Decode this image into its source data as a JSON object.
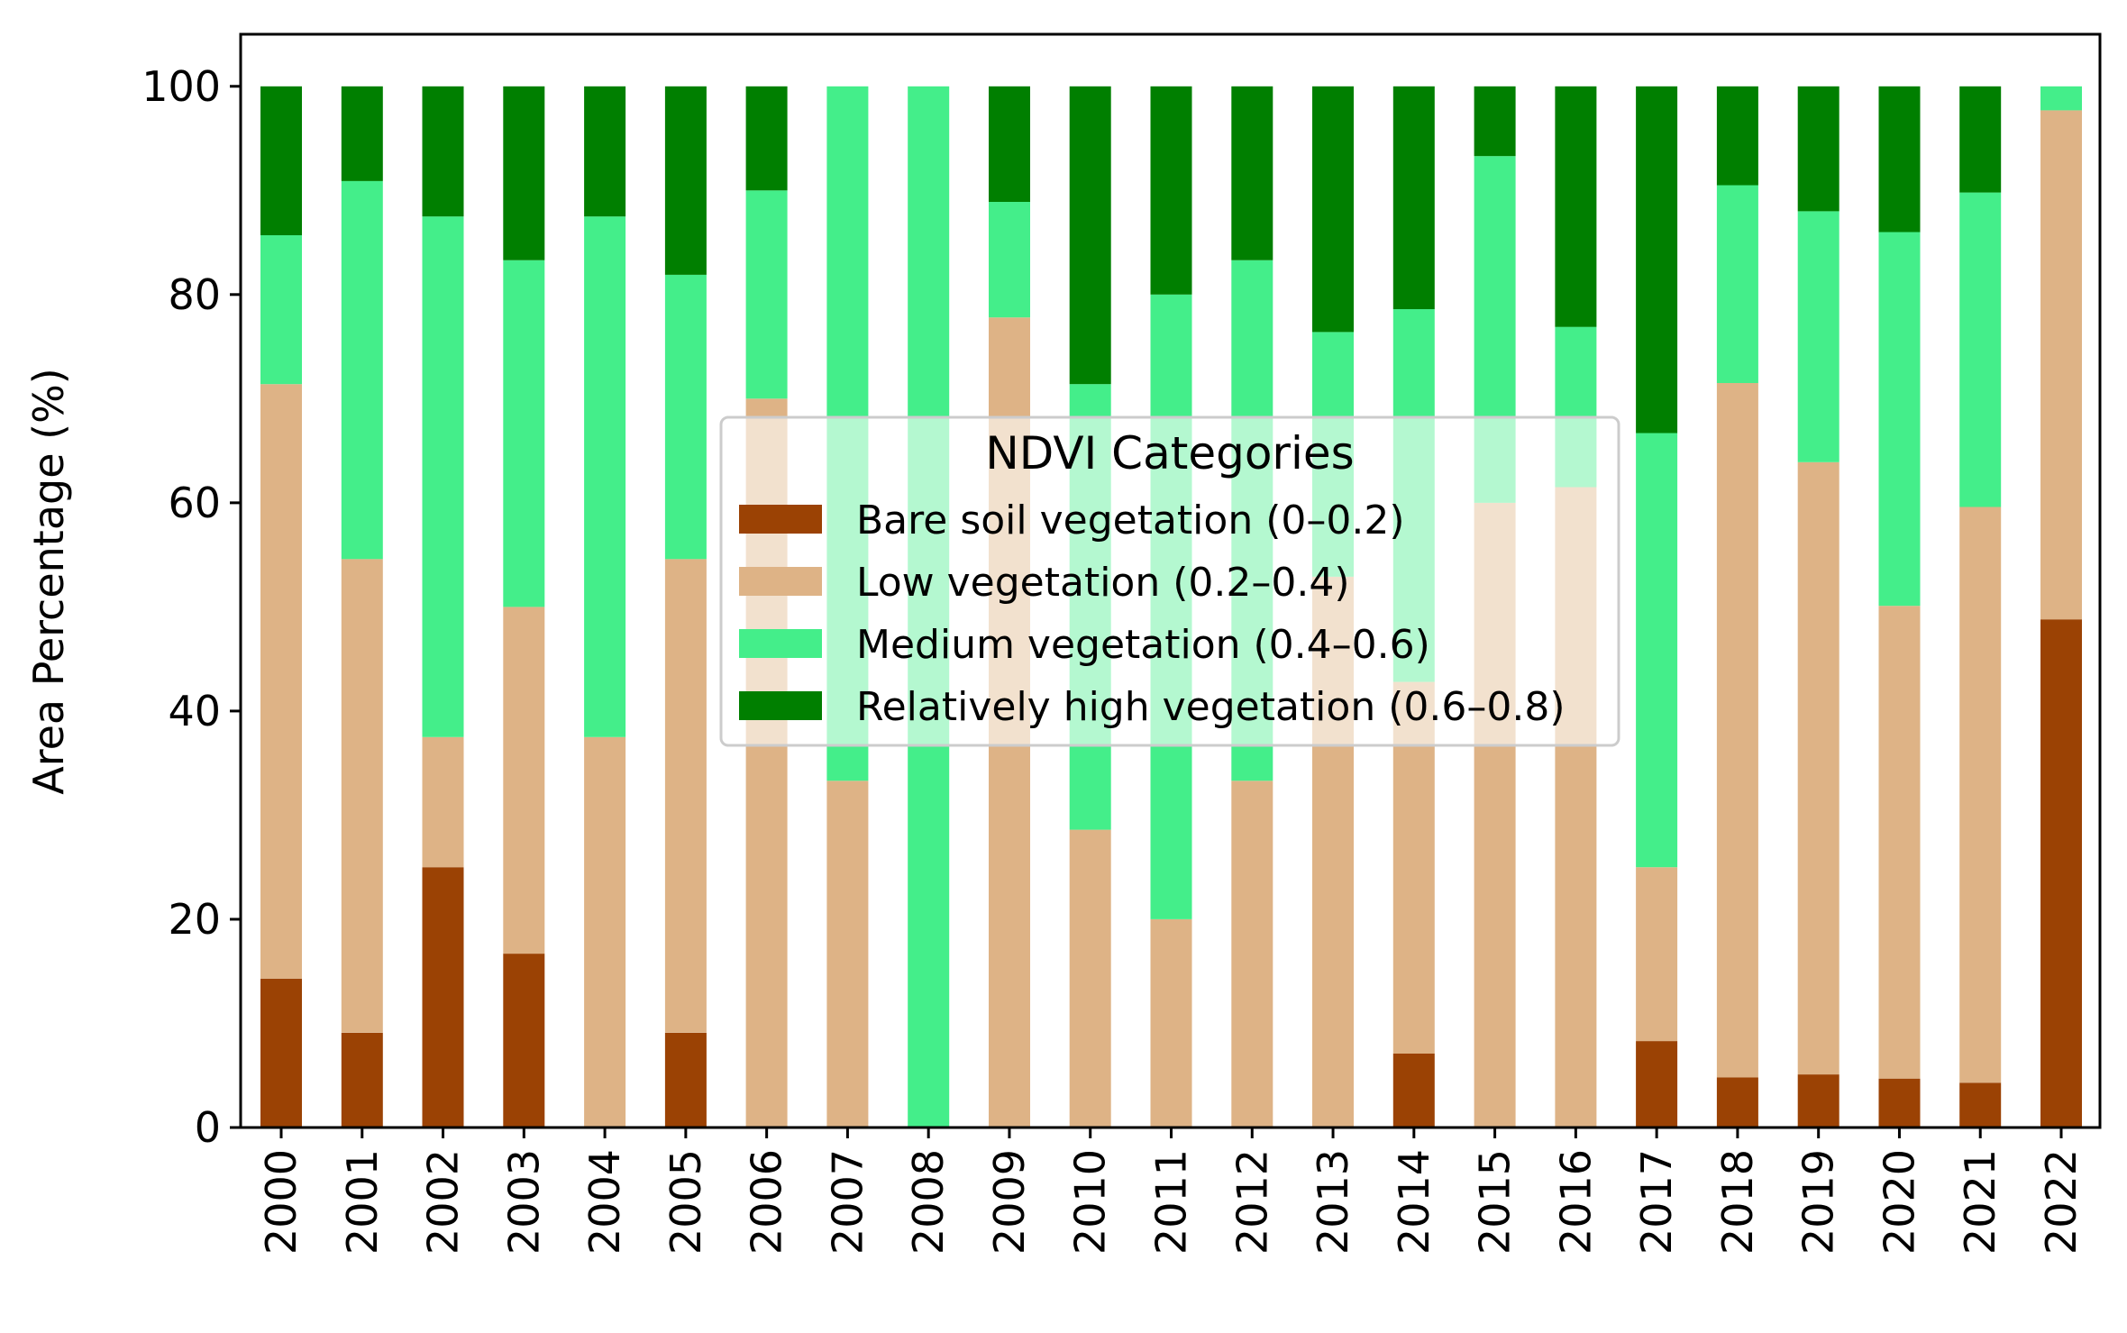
{
  "chart_data": {
    "type": "bar",
    "stacked": true,
    "title": "",
    "xlabel": "",
    "ylabel": "Area Percentage (%)",
    "ylim": [
      0,
      105
    ],
    "yticks": [
      0,
      20,
      40,
      60,
      80,
      100
    ],
    "categories": [
      "2000",
      "2001",
      "2002",
      "2003",
      "2004",
      "2005",
      "2006",
      "2007",
      "2008",
      "2009",
      "2010",
      "2011",
      "2012",
      "2013",
      "2014",
      "2015",
      "2016",
      "2017",
      "2018",
      "2019",
      "2020",
      "2021",
      "2022"
    ],
    "series": [
      {
        "name": "Bare soil vegetation (0–0.2)",
        "color": "#9b4204",
        "values": [
          14.3,
          9.1,
          25.0,
          16.7,
          0,
          9.1,
          0,
          0,
          0,
          0,
          0,
          0,
          0,
          0,
          7.1,
          0,
          0,
          8.3,
          4.8,
          5.1,
          4.7,
          4.3,
          48.8
        ]
      },
      {
        "name": "Low vegetation (0.2–0.4)",
        "color": "#deb386",
        "values": [
          57.1,
          45.5,
          12.5,
          33.3,
          37.5,
          45.5,
          70.0,
          33.3,
          0,
          77.8,
          28.6,
          20.0,
          33.3,
          52.9,
          35.7,
          60.0,
          61.5,
          16.7,
          66.7,
          58.8,
          45.4,
          55.3,
          48.9
        ]
      },
      {
        "name": "Medium vegetation (0.4–0.6)",
        "color": "#44ee8a",
        "values": [
          14.3,
          36.3,
          50.0,
          33.3,
          50.0,
          27.3,
          20.0,
          66.7,
          100.0,
          11.1,
          42.8,
          60.0,
          50.0,
          23.5,
          35.8,
          33.3,
          15.4,
          41.7,
          19.0,
          24.1,
          35.9,
          30.2,
          2.3
        ]
      },
      {
        "name": "Relatively high vegetation (0.6–0.8)",
        "color": "#007f00",
        "values": [
          14.3,
          9.1,
          12.5,
          16.7,
          12.5,
          18.1,
          10.0,
          0,
          0,
          11.1,
          28.6,
          20.0,
          16.7,
          23.6,
          21.4,
          6.7,
          23.1,
          33.3,
          9.5,
          12.0,
          14.0,
          10.2,
          0
        ]
      }
    ],
    "legend": {
      "title": "NDVI Categories",
      "location": "center"
    }
  }
}
